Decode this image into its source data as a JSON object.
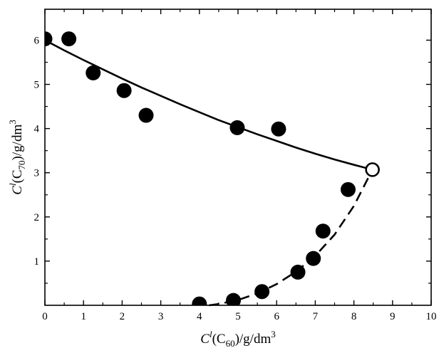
{
  "chart_data": {
    "type": "scatter",
    "title": "",
    "grid": false,
    "legend": "none",
    "xlim": [
      0,
      10
    ],
    "ylim": [
      0,
      6.7
    ],
    "x_ticks": [
      0,
      1,
      2,
      3,
      4,
      5,
      6,
      7,
      8,
      9,
      10
    ],
    "y_ticks": [
      1,
      2,
      3,
      4,
      5,
      6
    ],
    "x_tick_labels": [
      "0",
      "1",
      "2",
      "3",
      "4",
      "5",
      "6",
      "7",
      "8",
      "9",
      "10"
    ],
    "y_tick_labels": [
      "1",
      "2",
      "3",
      "4",
      "5",
      "6"
    ],
    "xlabel": {
      "base": "C",
      "sup": "l",
      "open": "(C",
      "sub": "60",
      "rest": ")/g/dm",
      "unit_sup": "3"
    },
    "ylabel": {
      "base": "C",
      "sup": "l",
      "open": "(C",
      "sub": "70",
      "rest": ")/g/dm",
      "unit_sup": "3"
    },
    "series": [
      {
        "marker": "filled-circle",
        "color": "#000000",
        "points": [
          [
            0.0,
            6.03
          ],
          [
            0.62,
            6.03
          ],
          [
            1.25,
            5.26
          ],
          [
            2.05,
            4.86
          ],
          [
            2.62,
            4.3
          ],
          [
            4.98,
            4.02
          ],
          [
            6.05,
            3.99
          ],
          [
            4.0,
            0.03
          ],
          [
            4.88,
            0.11
          ],
          [
            5.62,
            0.31
          ],
          [
            6.55,
            0.75
          ],
          [
            6.95,
            1.06
          ],
          [
            7.2,
            1.68
          ],
          [
            7.85,
            2.62
          ]
        ]
      },
      {
        "marker": "open-circle",
        "color": "#000000",
        "points": [
          [
            8.48,
            3.07
          ]
        ]
      }
    ],
    "curves": [
      {
        "style": "solid",
        "color": "#000000",
        "points": [
          [
            0.0,
            6.0
          ],
          [
            0.5,
            5.77
          ],
          [
            1.0,
            5.55
          ],
          [
            1.5,
            5.34
          ],
          [
            2.0,
            5.13
          ],
          [
            2.5,
            4.93
          ],
          [
            3.0,
            4.74
          ],
          [
            3.5,
            4.55
          ],
          [
            4.0,
            4.37
          ],
          [
            4.5,
            4.19
          ],
          [
            5.0,
            4.03
          ],
          [
            5.5,
            3.87
          ],
          [
            6.0,
            3.72
          ],
          [
            6.5,
            3.57
          ],
          [
            7.0,
            3.43
          ],
          [
            7.5,
            3.3
          ],
          [
            8.0,
            3.18
          ],
          [
            8.48,
            3.07
          ]
        ]
      },
      {
        "style": "dashed",
        "color": "#000000",
        "points": [
          [
            4.25,
            0.0
          ],
          [
            4.5,
            0.03
          ],
          [
            5.0,
            0.12
          ],
          [
            5.5,
            0.27
          ],
          [
            6.0,
            0.48
          ],
          [
            6.5,
            0.76
          ],
          [
            7.0,
            1.12
          ],
          [
            7.5,
            1.6
          ],
          [
            8.0,
            2.25
          ],
          [
            8.48,
            3.07
          ]
        ]
      }
    ]
  }
}
